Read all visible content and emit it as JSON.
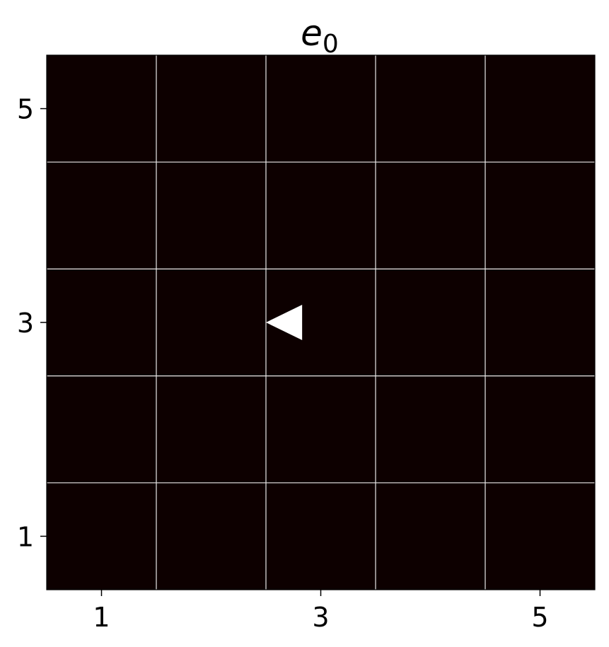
{
  "chart_data": {
    "type": "heatmap",
    "title": "e",
    "title_subscript": "0",
    "xlabel": "",
    "ylabel": "",
    "grid_size": [
      5,
      5
    ],
    "xlim": [
      0.5,
      5.5
    ],
    "ylim": [
      0.5,
      5.5
    ],
    "x_ticks": [
      1,
      3,
      5
    ],
    "x_tick_labels": [
      "1",
      "3",
      "5"
    ],
    "y_ticks": [
      1,
      3,
      5
    ],
    "y_tick_labels": [
      "1",
      "3",
      "5"
    ],
    "grid": true,
    "cell_values": [
      [
        0,
        0,
        0,
        0,
        0
      ],
      [
        0,
        0,
        0,
        0,
        0
      ],
      [
        0,
        0,
        0,
        0,
        0
      ],
      [
        0,
        0,
        0,
        0,
        0
      ],
      [
        0,
        0,
        0,
        0,
        0
      ]
    ],
    "agent": {
      "marker": "triangle-left",
      "x": 3,
      "y": 3
    },
    "colors": {
      "cell_fill": "#0d0000",
      "grid_line": "#e8e8e8",
      "marker": "#ffffff",
      "axis": "#000000"
    }
  }
}
